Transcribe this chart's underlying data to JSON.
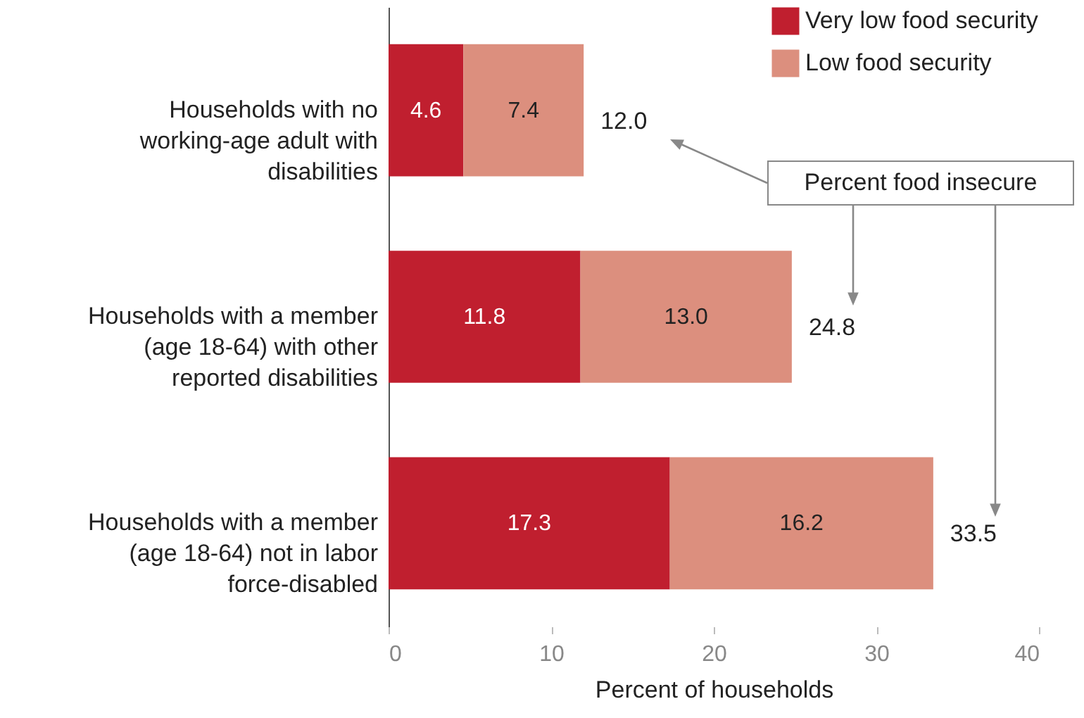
{
  "chart_data": {
    "type": "bar",
    "orientation": "horizontal",
    "stacked": true,
    "categories": [
      "Households with no working-age adult with disabilities",
      "Households with a member (age 18-64) with other reported disabilities",
      "Households with a member (age 18-64) not in labor force-disabled"
    ],
    "series": [
      {
        "name": "Very low food security",
        "color": "#c01f2f",
        "values": [
          4.6,
          11.8,
          17.3
        ],
        "value_labels": [
          "4.6",
          "11.8",
          "17.3"
        ]
      },
      {
        "name": "Low food security",
        "color": "#dc8f7e",
        "values": [
          7.4,
          13.0,
          16.2
        ],
        "value_labels": [
          "7.4",
          "13.0",
          "16.2"
        ]
      }
    ],
    "xlim": [
      0,
      40
    ],
    "xticks": [
      0,
      10,
      20,
      30,
      40
    ],
    "xlabel": "Percent of households",
    "totals": [
      "12.0",
      "24.8",
      "33.5"
    ],
    "legend": "top right",
    "grid": false,
    "annotations": [
      "Percent food insecure"
    ]
  }
}
